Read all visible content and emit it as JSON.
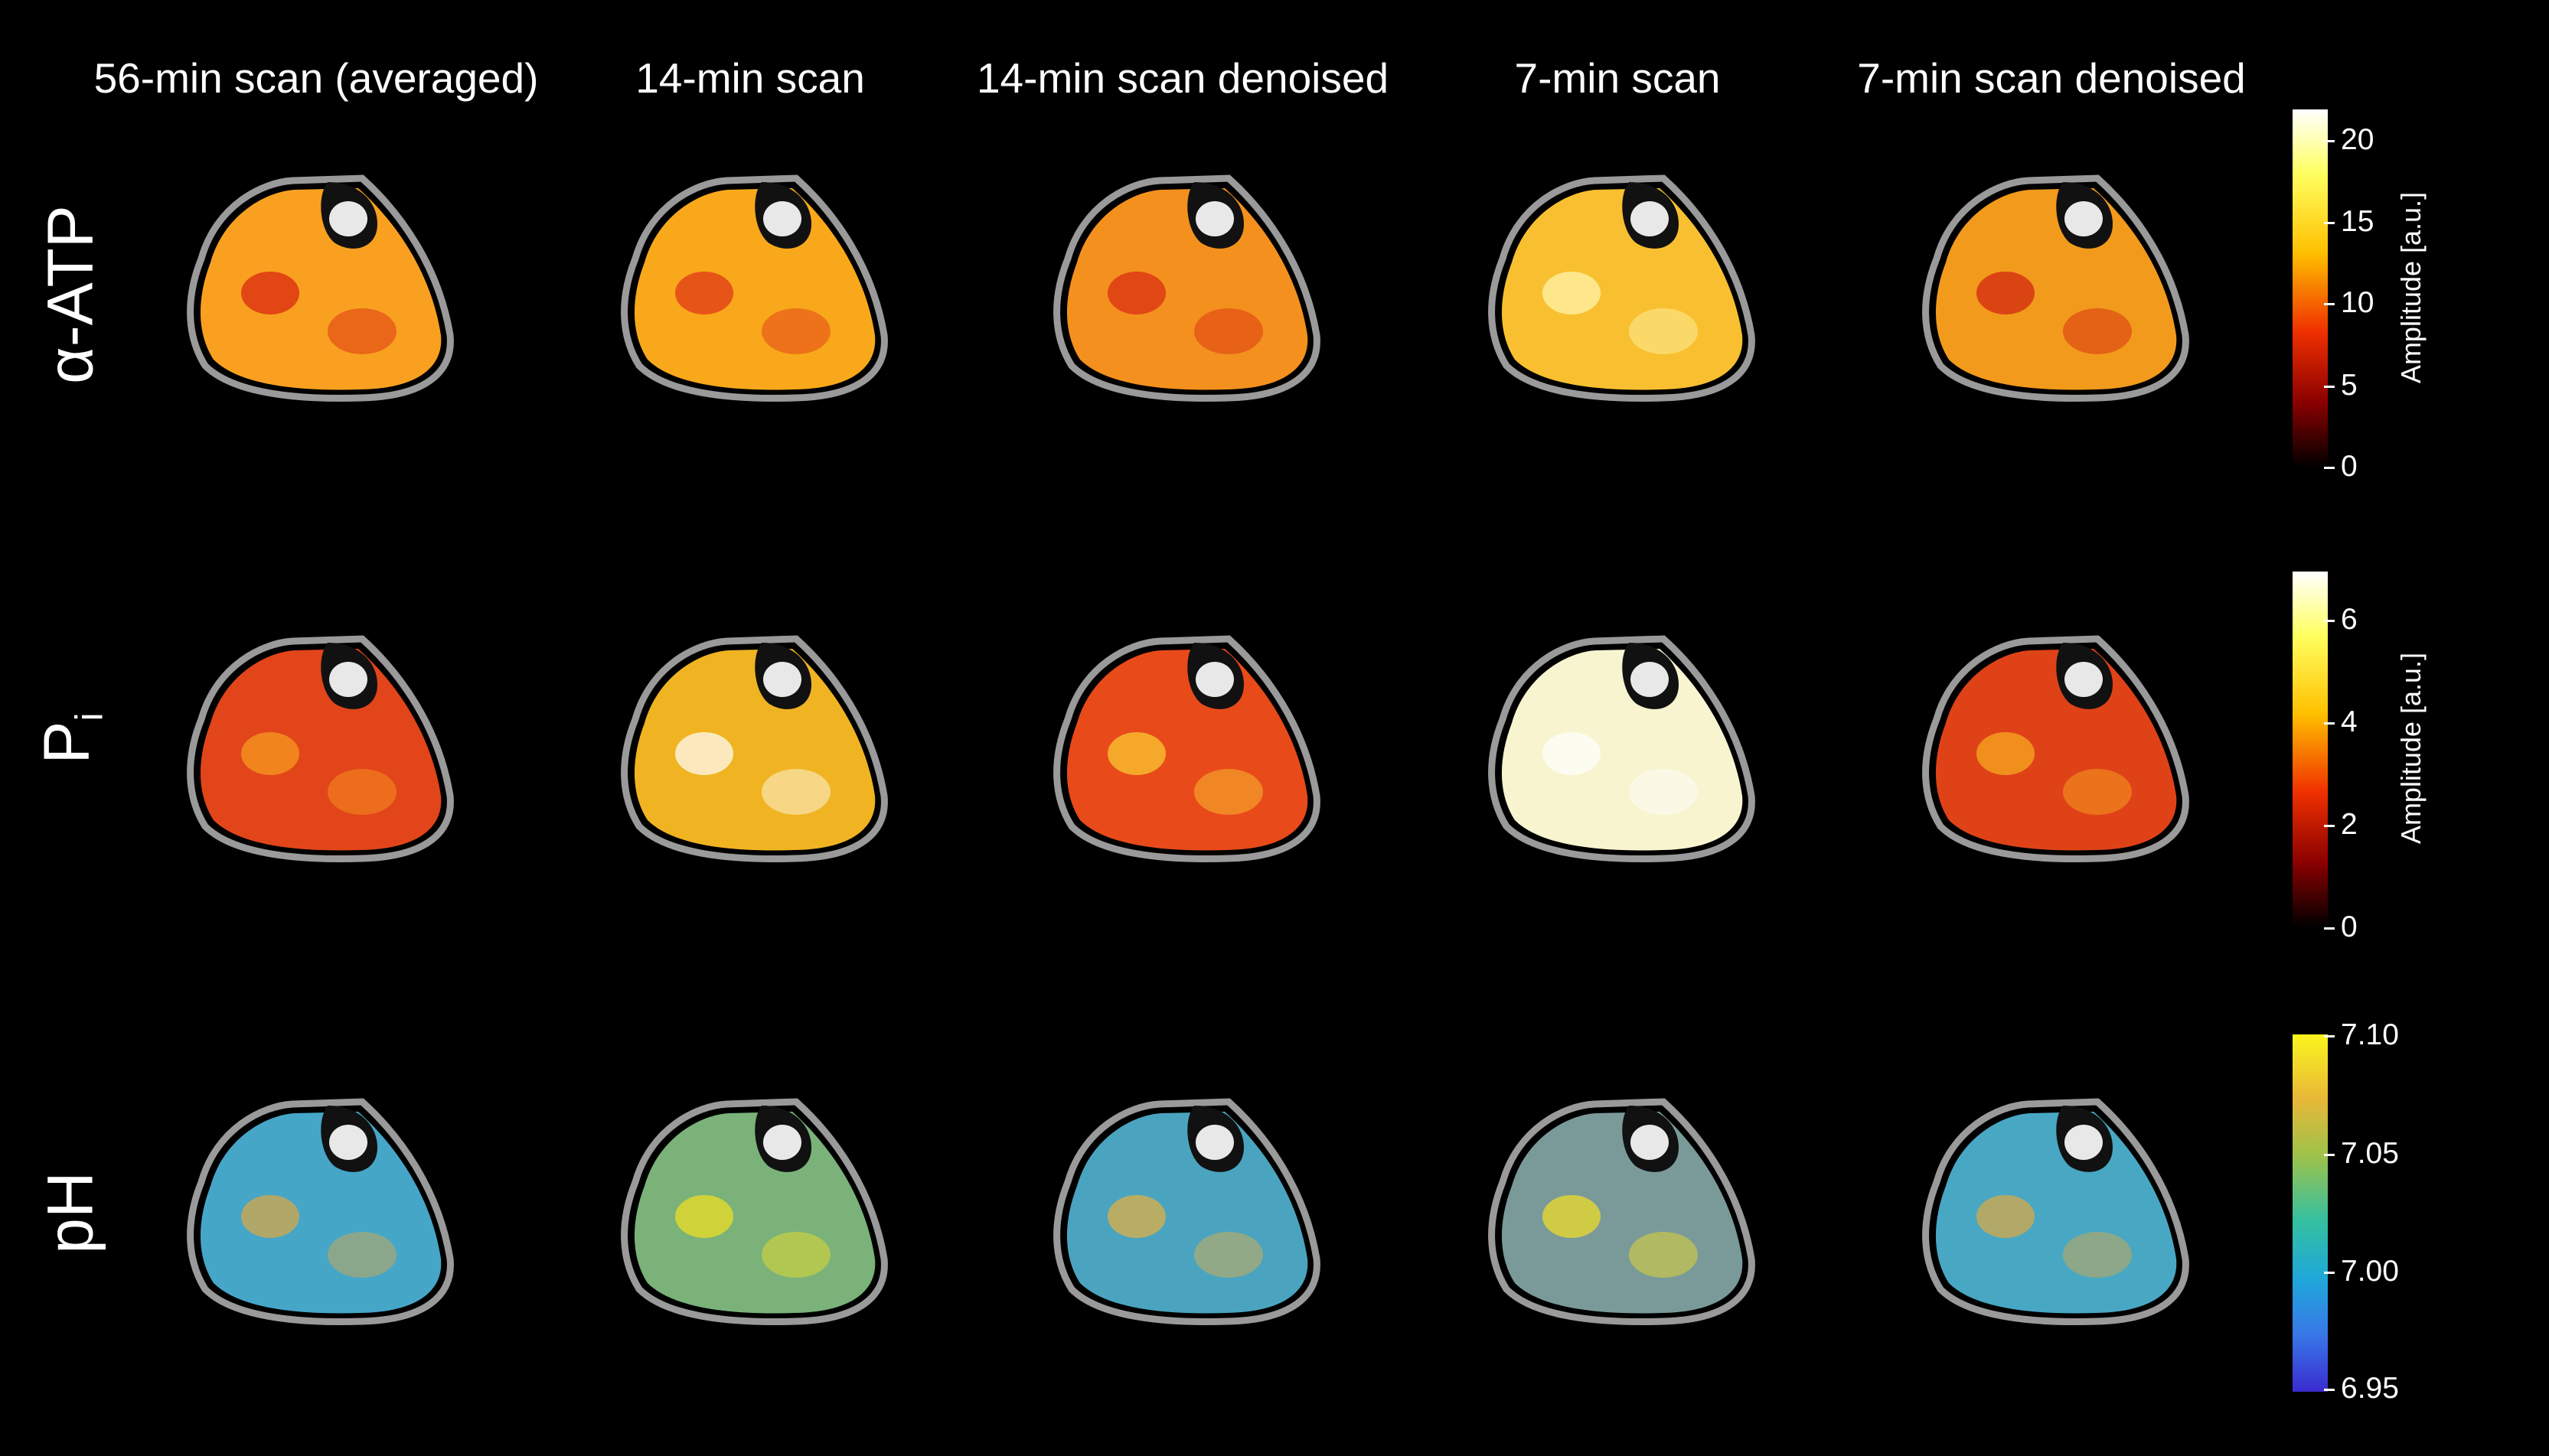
{
  "columns": [
    "56-min scan (averaged)",
    "14-min scan",
    "14-min scan denoised",
    "7-min scan",
    "7-min scan denoised"
  ],
  "rows": [
    {
      "label": "α-ATP",
      "sub": ""
    },
    {
      "label": "P",
      "sub": "i"
    },
    {
      "label": "pH",
      "sub": ""
    }
  ],
  "colorbars": [
    {
      "label": "Amplitude [a.u.]",
      "ticks": [
        "20",
        "15",
        "10",
        "5",
        "0"
      ],
      "colormap": "hot"
    },
    {
      "label": "Amplitude [a.u.]",
      "ticks": [
        "6",
        "4",
        "2",
        "0"
      ],
      "colormap": "hot"
    },
    {
      "label": "",
      "ticks": [
        "7.10",
        "7.05",
        "7.00",
        "6.95"
      ],
      "colormap": "parula"
    }
  ],
  "colors": {
    "background": "#000000",
    "hot_low": "#200000",
    "hot_mid": "#e53b0a",
    "hot_high": "#ffffff",
    "parula_low": "#3b2bd0",
    "parula_mid": "#2fb7b3",
    "parula_high": "#fbe51e"
  }
}
